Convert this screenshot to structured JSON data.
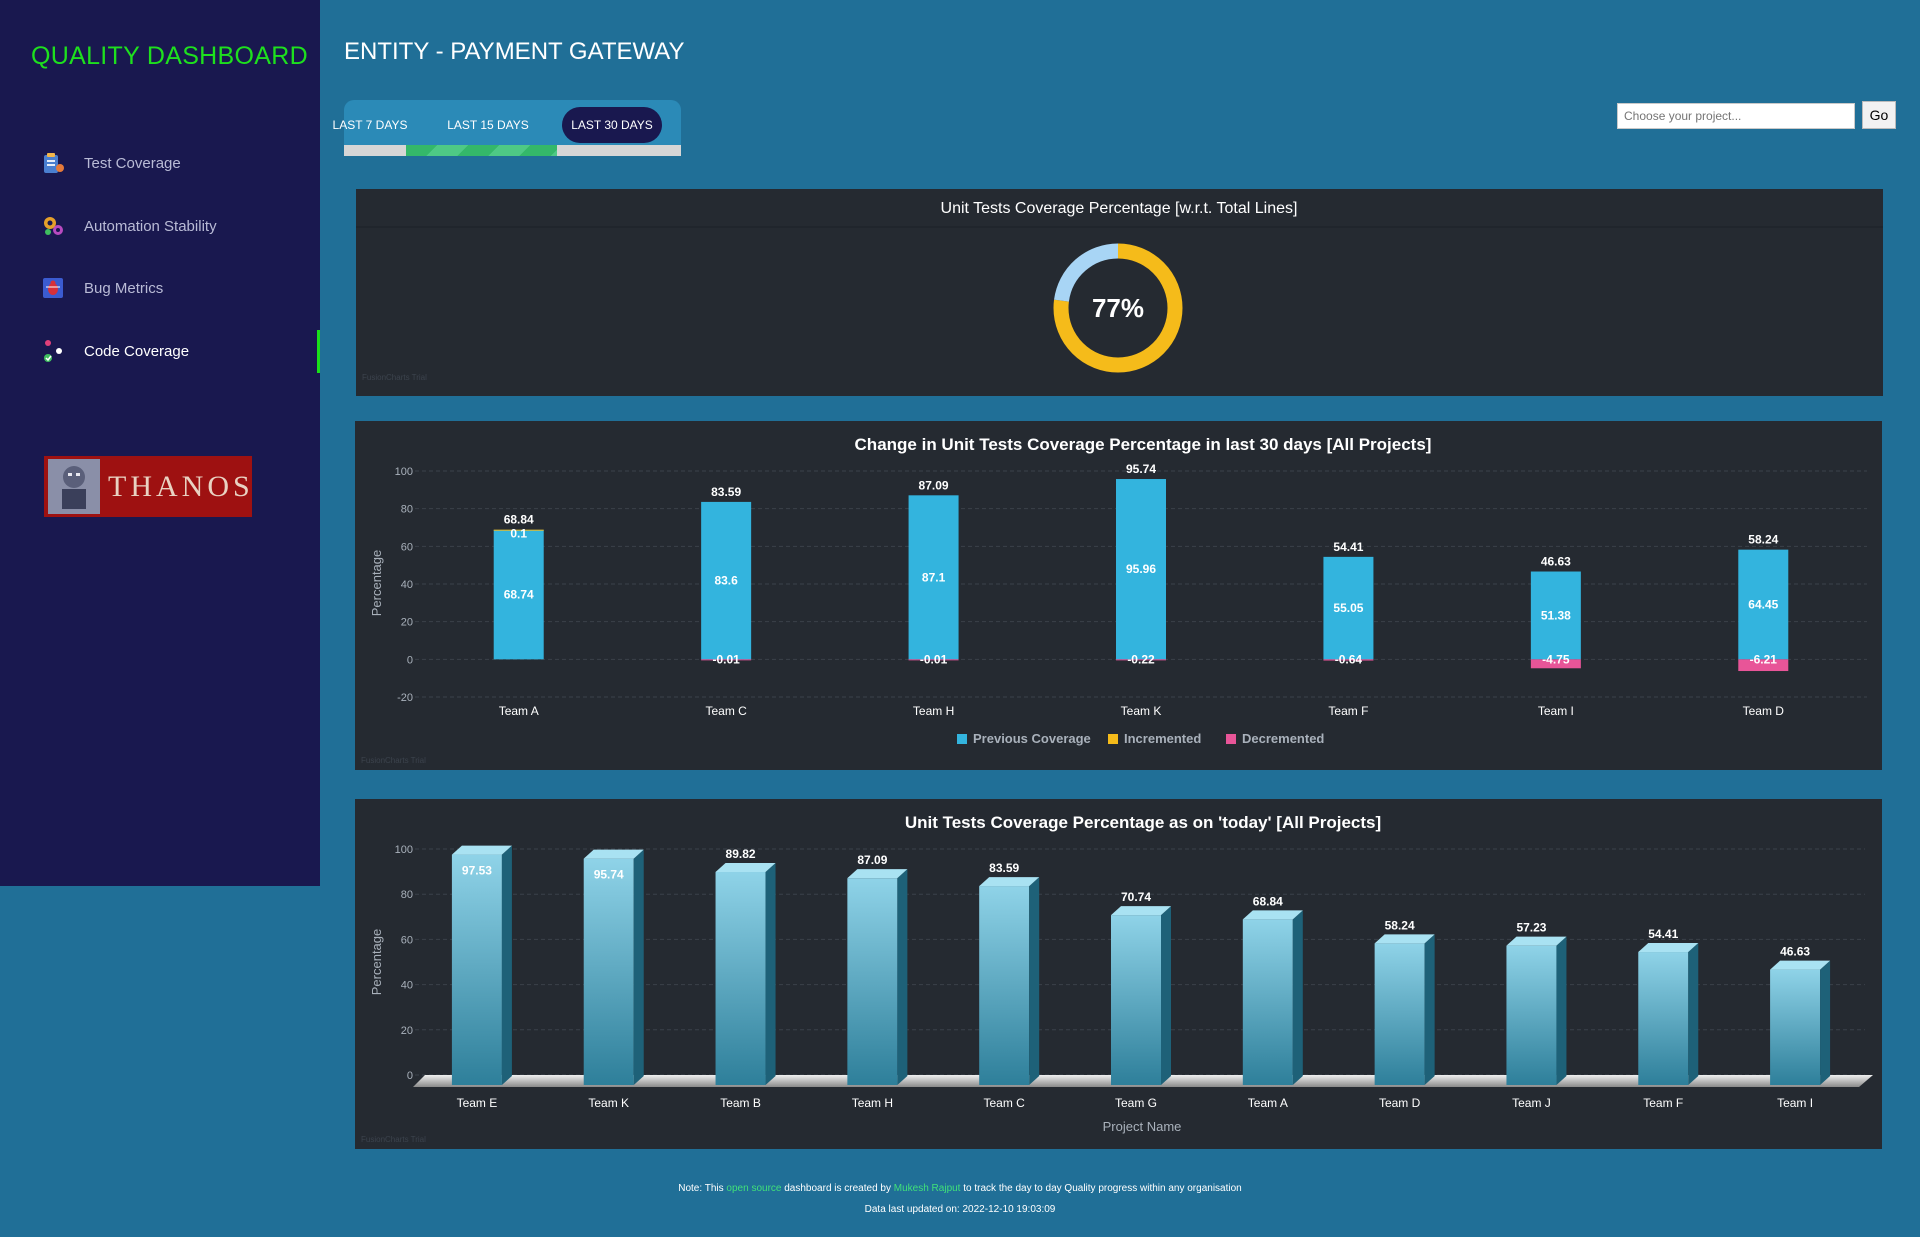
{
  "sidebar": {
    "brand": "QUALITY DASHBOARD",
    "items": [
      {
        "label": "Test Coverage",
        "icon": "clipboard-icon"
      },
      {
        "label": "Automation Stability",
        "icon": "gears-icon"
      },
      {
        "label": "Bug Metrics",
        "icon": "bug-icon"
      },
      {
        "label": "Code Coverage",
        "icon": "molecule-icon",
        "active": true
      }
    ],
    "logo_text": "THANOS"
  },
  "header": {
    "title": "ENTITY - PAYMENT GATEWAY",
    "ranges": [
      "LAST 7 DAYS",
      "LAST 15 DAYS",
      "LAST 30 DAYS"
    ],
    "selected_range": "LAST 30 DAYS",
    "search_placeholder": "Choose your project...",
    "go_label": "Go"
  },
  "watermark": "FusionCharts Trial",
  "chart_data": [
    {
      "type": "doughnut",
      "title": "Unit Tests Coverage Percentage [w.r.t. Total Lines]",
      "center_label": "77%",
      "values": [
        77,
        23
      ],
      "colors": [
        "#f5bb1a",
        "#a8d5f5"
      ]
    },
    {
      "type": "stacked-bar",
      "title": "Change in Unit Tests Coverage Percentage in last 30 days [All Projects]",
      "ylabel": "Percentage",
      "ylim": [
        -20,
        100
      ],
      "yticks": [
        100,
        80,
        60,
        40,
        20,
        0,
        -20
      ],
      "categories": [
        "Team A",
        "Team C",
        "Team H",
        "Team K",
        "Team F",
        "Team I",
        "Team D"
      ],
      "series": [
        {
          "name": "Previous Coverage",
          "color": "#33b4de",
          "values": [
            68.74,
            83.6,
            87.1,
            95.96,
            55.05,
            51.38,
            64.45
          ]
        },
        {
          "name": "Incremented",
          "color": "#f5bb1a",
          "values": [
            0.1,
            0,
            0,
            0,
            0,
            0,
            0
          ]
        },
        {
          "name": "Decremented",
          "color": "#e85598",
          "values": [
            0,
            -0.01,
            -0.01,
            -0.22,
            -0.64,
            -4.75,
            -6.21
          ]
        }
      ],
      "totals": [
        "68.84",
        "83.59",
        "87.09",
        "95.74",
        "54.41",
        "46.63",
        "58.24"
      ],
      "inc_labels": [
        "0.1",
        "",
        "",
        "",
        "",
        "",
        ""
      ],
      "prev_labels": [
        "68.74",
        "83.6",
        "87.1",
        "95.96",
        "55.05",
        "51.38",
        "64.45"
      ],
      "dec_labels": [
        "",
        "-0.01",
        "-0.01",
        "-0.22",
        "-0.64",
        "-4.75",
        "-6.21"
      ]
    },
    {
      "type": "bar",
      "title": "Unit Tests Coverage Percentage as on 'today' [All Projects]",
      "xlabel": "Project Name",
      "ylabel": "Percentage",
      "ylim": [
        0,
        100
      ],
      "yticks": [
        100,
        80,
        60,
        40,
        20,
        0
      ],
      "categories": [
        "Team E",
        "Team K",
        "Team B",
        "Team H",
        "Team C",
        "Team G",
        "Team A",
        "Team D",
        "Team J",
        "Team F",
        "Team I"
      ],
      "values": [
        97.53,
        95.74,
        89.82,
        87.09,
        83.59,
        70.74,
        68.84,
        58.24,
        57.23,
        54.41,
        46.63
      ],
      "labels": [
        "97.53",
        "95.74",
        "89.82",
        "87.09",
        "83.59",
        "70.74",
        "68.84",
        "58.24",
        "57.23",
        "54.41",
        "46.63"
      ]
    }
  ],
  "footer": {
    "note_prefix": "Note: This ",
    "link1": "open source",
    "note_mid": " dashboard is created by ",
    "link2": "Mukesh Rajput",
    "note_suffix": " to track the day to day Quality progress within any organisation",
    "updated": "Data last updated on: 2022-12-10 19:03:09"
  }
}
